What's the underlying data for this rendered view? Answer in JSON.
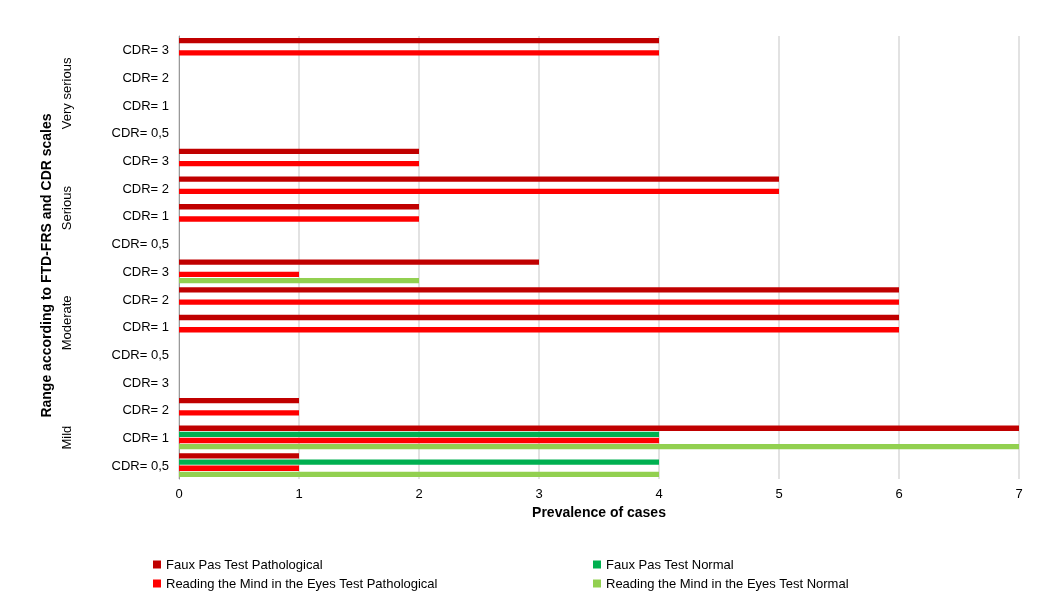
{
  "chart_data": {
    "type": "bar",
    "orientation": "horizontal",
    "xlabel": "Prevalence of cases",
    "ylabel": "Range according to FTD-FRS and CDR scales",
    "categories": [
      "CDR= 3",
      "CDR= 2",
      "CDR= 1",
      "CDR= 0,5",
      "CDR= 3",
      "CDR= 2",
      "CDR= 1",
      "CDR= 0,5",
      "CDR= 3",
      "CDR= 2",
      "CDR= 1",
      "CDR= 0,5",
      "CDR= 3",
      "CDR= 2",
      "CDR= 1",
      "CDR= 0,5"
    ],
    "annotations": [
      "Very serious",
      "Serious",
      "Moderate",
      "Mild"
    ],
    "series": [
      {
        "name": "Faux Pas Test Pathological",
        "color": "#c00000",
        "values": [
          4,
          0,
          0,
          0,
          2,
          5,
          2,
          0,
          3,
          6,
          6,
          0,
          0,
          1,
          7,
          1
        ]
      },
      {
        "name": "Faux Pas Test Normal",
        "color": "#00b050",
        "values": [
          0,
          0,
          0,
          0,
          0,
          0,
          0,
          0,
          0,
          0,
          0,
          0,
          0,
          0,
          4,
          4
        ]
      },
      {
        "name": "Reading the Mind in the Eyes Test Pathological",
        "color": "#ff0000",
        "values": [
          4,
          0,
          0,
          0,
          2,
          5,
          2,
          0,
          1,
          6,
          6,
          0,
          0,
          1,
          4,
          1
        ]
      },
      {
        "name": "Reading the Mind in the Eyes Test Normal",
        "color": "#92d050",
        "values": [
          0,
          0,
          0,
          0,
          0,
          0,
          0,
          0,
          2,
          0,
          0,
          0,
          0,
          0,
          7,
          4
        ]
      }
    ],
    "xlim": [
      0,
      7
    ],
    "xticks": [
      0,
      1,
      2,
      3,
      4,
      5,
      6,
      7
    ],
    "grid": "x",
    "legend": "bottom"
  }
}
